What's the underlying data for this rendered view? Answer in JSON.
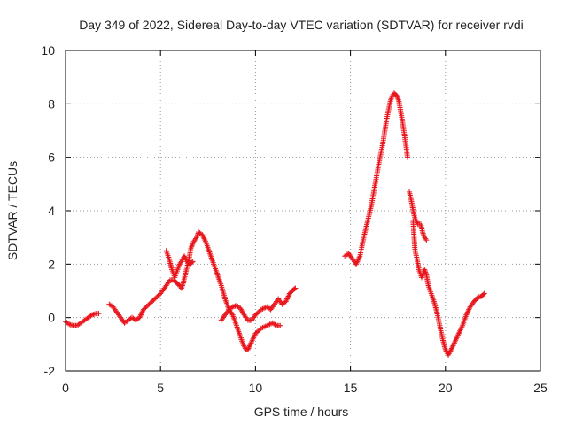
{
  "chart_data": {
    "type": "scatter",
    "title": "Day 349 of 2022, Sidereal Day-to-day VTEC variation (SDTVAR) for receiver rvdi",
    "xlabel": "GPS time / hours",
    "ylabel": "SDTVAR / TECUs",
    "xlim": [
      0,
      25
    ],
    "ylim": [
      -2,
      10
    ],
    "xticks": [
      0,
      5,
      10,
      15,
      20,
      25
    ],
    "yticks": [
      -2,
      0,
      2,
      4,
      6,
      8,
      10
    ],
    "grid": true,
    "marker": "+",
    "series_color": "#e8141b",
    "series": [
      {
        "name": "SDTVAR",
        "segments": [
          [
            [
              0.0,
              -0.15
            ],
            [
              0.2,
              -0.25
            ],
            [
              0.4,
              -0.3
            ],
            [
              0.6,
              -0.3
            ],
            [
              0.8,
              -0.2
            ],
            [
              1.0,
              -0.1
            ],
            [
              1.2,
              0.0
            ],
            [
              1.4,
              0.1
            ],
            [
              1.6,
              0.15
            ],
            [
              1.75,
              0.15
            ]
          ],
          [
            [
              2.3,
              0.5
            ],
            [
              2.5,
              0.4
            ],
            [
              2.7,
              0.2
            ],
            [
              2.9,
              0.0
            ],
            [
              3.1,
              -0.2
            ],
            [
              3.3,
              -0.1
            ],
            [
              3.5,
              0.0
            ],
            [
              3.7,
              -0.1
            ],
            [
              3.9,
              0.0
            ],
            [
              4.1,
              0.3
            ],
            [
              4.4,
              0.5
            ],
            [
              4.7,
              0.7
            ],
            [
              5.0,
              0.9
            ],
            [
              5.3,
              1.2
            ],
            [
              5.5,
              1.4
            ],
            [
              5.7,
              1.4
            ],
            [
              5.85,
              1.3
            ],
            [
              6.0,
              1.2
            ],
            [
              6.1,
              1.1
            ],
            [
              6.2,
              1.3
            ],
            [
              6.3,
              1.6
            ],
            [
              6.4,
              1.9
            ],
            [
              6.5,
              2.2
            ],
            [
              6.6,
              2.6
            ],
            [
              6.75,
              2.85
            ],
            [
              6.9,
              3.0
            ],
            [
              7.0,
              3.2
            ],
            [
              7.2,
              3.1
            ],
            [
              7.4,
              2.8
            ],
            [
              7.6,
              2.4
            ],
            [
              7.8,
              2.0
            ],
            [
              8.0,
              1.6
            ],
            [
              8.2,
              1.2
            ],
            [
              8.4,
              0.7
            ],
            [
              8.6,
              0.3
            ],
            [
              8.8,
              0.1
            ],
            [
              9.0,
              -0.3
            ],
            [
              9.2,
              -0.7
            ],
            [
              9.35,
              -1.0
            ],
            [
              9.5,
              -1.2
            ],
            [
              9.6,
              -1.2
            ],
            [
              9.8,
              -0.9
            ],
            [
              10.0,
              -0.6
            ],
            [
              10.3,
              -0.4
            ],
            [
              10.6,
              -0.3
            ],
            [
              10.9,
              -0.2
            ],
            [
              11.1,
              -0.3
            ],
            [
              11.3,
              -0.3
            ]
          ],
          [
            [
              5.3,
              2.5
            ],
            [
              5.45,
              2.2
            ],
            [
              5.6,
              1.8
            ],
            [
              5.75,
              1.5
            ],
            [
              5.9,
              1.8
            ],
            [
              6.0,
              2.0
            ],
            [
              6.1,
              2.1
            ],
            [
              6.25,
              2.3
            ],
            [
              6.4,
              2.1
            ],
            [
              6.55,
              2.0
            ],
            [
              6.7,
              2.1
            ]
          ],
          [
            [
              8.2,
              -0.1
            ],
            [
              8.4,
              0.1
            ],
            [
              8.6,
              0.3
            ],
            [
              8.8,
              0.4
            ],
            [
              9.0,
              0.45
            ],
            [
              9.2,
              0.35
            ],
            [
              9.4,
              0.1
            ],
            [
              9.6,
              -0.1
            ],
            [
              9.8,
              -0.1
            ],
            [
              10.0,
              0.1
            ],
            [
              10.3,
              0.3
            ],
            [
              10.6,
              0.4
            ],
            [
              10.8,
              0.3
            ],
            [
              11.0,
              0.5
            ],
            [
              11.2,
              0.7
            ],
            [
              11.4,
              0.5
            ],
            [
              11.6,
              0.6
            ],
            [
              11.8,
              0.9
            ],
            [
              12.0,
              1.05
            ],
            [
              12.1,
              1.1
            ]
          ],
          [
            [
              14.7,
              2.3
            ],
            [
              14.9,
              2.4
            ],
            [
              15.1,
              2.2
            ],
            [
              15.3,
              2.0
            ],
            [
              15.5,
              2.3
            ],
            [
              15.7,
              3.0
            ],
            [
              15.9,
              3.6
            ],
            [
              16.1,
              4.2
            ],
            [
              16.3,
              5.0
            ],
            [
              16.5,
              5.8
            ],
            [
              16.7,
              6.5
            ],
            [
              16.9,
              7.4
            ],
            [
              17.1,
              8.1
            ],
            [
              17.2,
              8.3
            ],
            [
              17.3,
              8.4
            ],
            [
              17.45,
              8.3
            ],
            [
              17.55,
              8.1
            ],
            [
              17.7,
              7.5
            ],
            [
              17.85,
              6.8
            ],
            [
              17.95,
              6.3
            ],
            [
              18.0,
              6.0
            ]
          ],
          [
            [
              18.1,
              4.7
            ],
            [
              18.2,
              4.4
            ],
            [
              18.3,
              4.0
            ],
            [
              18.4,
              3.7
            ],
            [
              18.55,
              3.5
            ],
            [
              18.7,
              3.5
            ],
            [
              18.8,
              3.2
            ],
            [
              18.9,
              3.0
            ],
            [
              19.0,
              2.9
            ]
          ],
          [
            [
              18.3,
              3.6
            ],
            [
              18.35,
              3.0
            ],
            [
              18.4,
              2.5
            ],
            [
              18.5,
              2.2
            ],
            [
              18.6,
              1.8
            ],
            [
              18.75,
              1.5
            ],
            [
              18.9,
              1.8
            ],
            [
              19.0,
              1.6
            ],
            [
              19.1,
              1.2
            ],
            [
              19.25,
              0.9
            ],
            [
              19.4,
              0.6
            ],
            [
              19.55,
              0.2
            ],
            [
              19.7,
              -0.3
            ],
            [
              19.85,
              -0.8
            ],
            [
              20.0,
              -1.2
            ],
            [
              20.15,
              -1.4
            ],
            [
              20.3,
              -1.2
            ],
            [
              20.5,
              -0.9
            ],
            [
              20.7,
              -0.6
            ],
            [
              20.9,
              -0.3
            ],
            [
              21.1,
              0.1
            ],
            [
              21.3,
              0.4
            ],
            [
              21.5,
              0.6
            ],
            [
              21.7,
              0.75
            ],
            [
              21.9,
              0.8
            ],
            [
              22.05,
              0.9
            ]
          ]
        ]
      }
    ]
  }
}
